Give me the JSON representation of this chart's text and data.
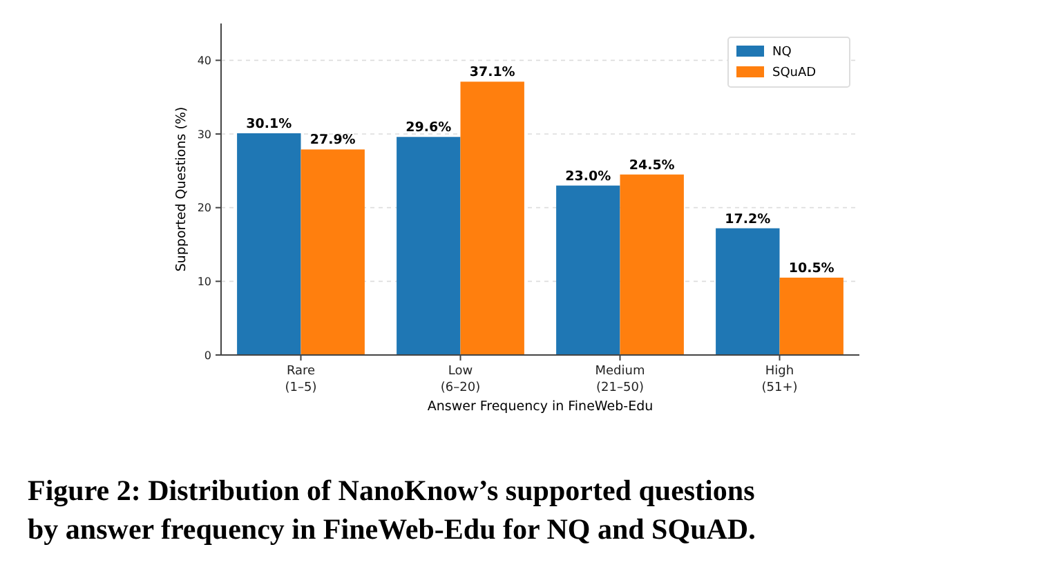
{
  "chart_data": {
    "type": "bar",
    "xlabel": "Answer Frequency in FineWeb-Edu",
    "ylabel": "Supported Questions (%)",
    "categories": [
      "Rare\n(1–5)",
      "Low\n(6–20)",
      "Medium\n(21–50)",
      "High\n(51+)"
    ],
    "series": [
      {
        "name": "NQ",
        "color": "#1f77b4",
        "values": [
          30.1,
          29.6,
          23.0,
          17.2
        ],
        "value_labels": [
          "30.1%",
          "29.6%",
          "23.0%",
          "17.2%"
        ]
      },
      {
        "name": "SQuAD",
        "color": "#ff7f0e",
        "values": [
          27.9,
          37.1,
          24.5,
          10.5
        ],
        "value_labels": [
          "27.9%",
          "37.1%",
          "24.5%",
          "10.5%"
        ]
      }
    ],
    "ylim": [
      0,
      45
    ],
    "yticks": [
      0,
      10,
      20,
      30,
      40
    ],
    "grid": "y",
    "legend": "top right",
    "annotations": [
      "Figure 2: Distribution of NanoKnow’s supported questions\nby answer frequency in FineWeb-Edu for NQ and SQuAD."
    ]
  }
}
